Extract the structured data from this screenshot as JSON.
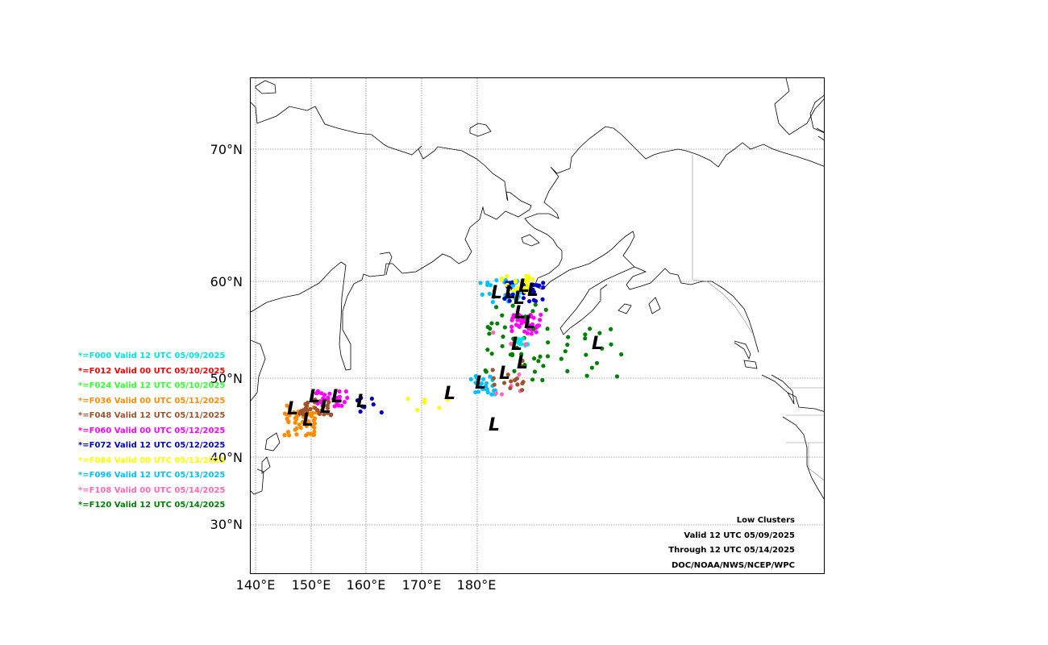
{
  "map": {
    "lat_labels": [
      "70°N",
      "60°N",
      "50°N",
      "40°N",
      "30°N"
    ],
    "lon_labels": [
      "140°E",
      "150°E",
      "160°E",
      "170°E",
      "180°E"
    ]
  },
  "legend": [
    {
      "text": "*=F000 Valid 12 UTC 05/09/2025",
      "color": "#00e5e5"
    },
    {
      "text": "*=F012 Valid 00 UTC 05/10/2025",
      "color": "#ff0000"
    },
    {
      "text": "*=F024 Valid 12 UTC 05/10/2025",
      "color": "#33ff33"
    },
    {
      "text": "*=F036 Valid 00 UTC 05/11/2025",
      "color": "#ff8c00"
    },
    {
      "text": "*=F048 Valid 12 UTC 05/11/2025",
      "color": "#a0522d"
    },
    {
      "text": "*=F060 Valid 00 UTC 05/12/2025",
      "color": "#ff00ff"
    },
    {
      "text": "*=F072 Valid 12 UTC 05/12/2025",
      "color": "#0000cd"
    },
    {
      "text": "*=F084 Valid 00 UTC 05/13/2025",
      "color": "#ffff00"
    },
    {
      "text": "*=F096 Valid 12 UTC 05/13/2025",
      "color": "#00bfff"
    },
    {
      "text": "*=F108 Valid 00 UTC 05/14/2025",
      "color": "#ff69b4"
    },
    {
      "text": "*=F120 Valid 12 UTC 05/14/2025",
      "color": "#008000"
    }
  ],
  "info": {
    "line1": "Low Clusters",
    "line2": "Valid 12 UTC 05/09/2025",
    "line3": "Through 12 UTC 05/14/2025",
    "line4": "DOC/NOAA/NWS/NCEP/WPC"
  },
  "low_symbol": "L"
}
